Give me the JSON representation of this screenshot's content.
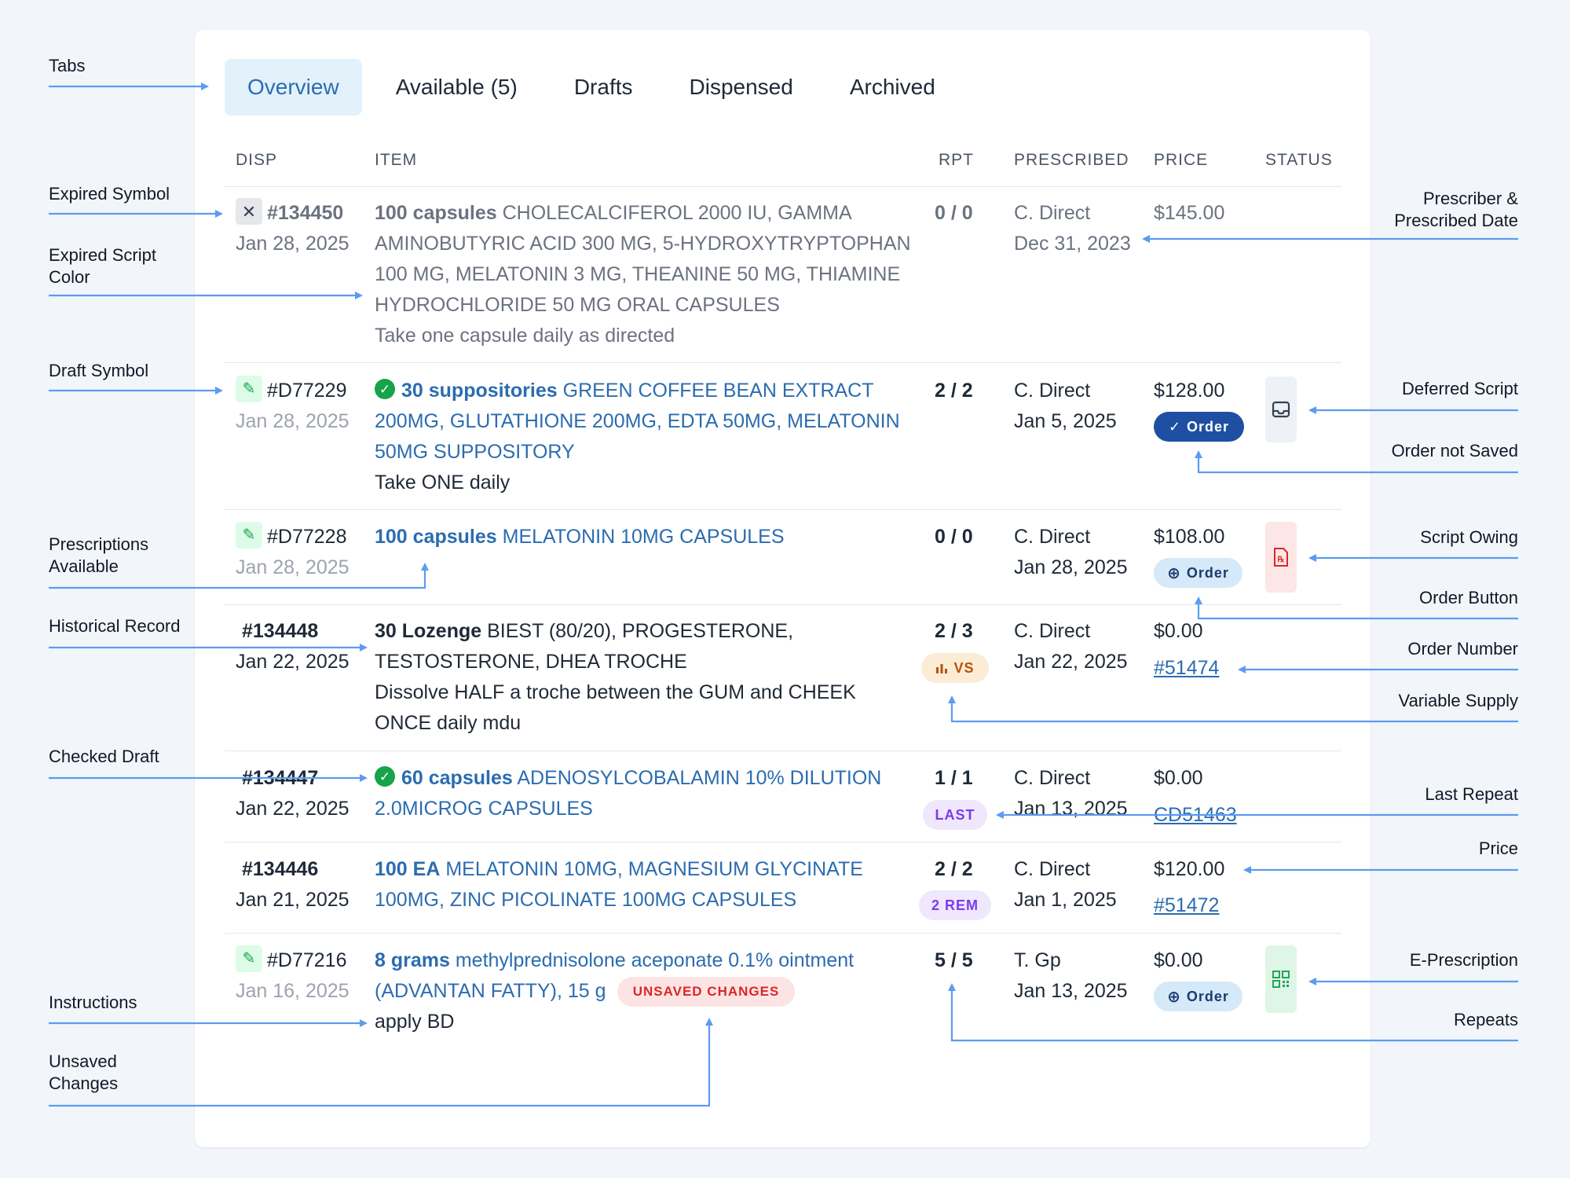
{
  "tabs": [
    {
      "label": "Overview",
      "active": true
    },
    {
      "label": "Available (5)"
    },
    {
      "label": "Drafts"
    },
    {
      "label": "Dispensed"
    },
    {
      "label": "Archived"
    }
  ],
  "columns": {
    "disp": "DISP",
    "item": "ITEM",
    "rpt": "RPT",
    "prescribed": "PRESCRIBED",
    "price": "PRICE",
    "status": "STATUS"
  },
  "rows": [
    {
      "number": "#134450",
      "date": "Jan 28, 2025",
      "qty": "100 capsules",
      "item_lines": [
        "CHOLECALCIFEROL 2000 IU, GAMMA",
        "AMINOBUTYRIC ACID 300 MG, 5-HYDROXYTRYPTOPHAN",
        "100 MG, MELATONIN 3 MG, THEANINE 50 MG, THIAMINE",
        "HYDROCHLORIDE 50 MG ORAL CAPSULES"
      ],
      "instructions": "Take one capsule daily as directed",
      "rpt": "0 / 0",
      "prescriber": "C. Direct",
      "prescribed_date": "Dec 31, 2023",
      "price": "$145.00"
    },
    {
      "number": "#D77229",
      "date": "Jan 28, 2025",
      "qty": "30 suppositories",
      "item_lines": [
        "GREEN COFFEE BEAN EXTRACT",
        "200MG, GLUTATHIONE 200MG, EDTA 50MG, MELATONIN",
        "50MG SUPPOSITORY"
      ],
      "instructions": "Take ONE daily",
      "rpt": "2 / 2",
      "prescriber": "C. Direct",
      "prescribed_date": "Jan 5, 2025",
      "price": "$128.00",
      "order_button": "Order"
    },
    {
      "number": "#D77228",
      "date": "Jan 28, 2025",
      "qty": "100 capsules",
      "item_lines": [
        "MELATONIN 10MG CAPSULES"
      ],
      "rpt": "0 / 0",
      "prescriber": "C. Direct",
      "prescribed_date": "Jan 28, 2025",
      "price": "$108.00",
      "order_button": "Order"
    },
    {
      "number": "#134448",
      "date": "Jan 22, 2025",
      "qty": "30 Lozenge",
      "item_lines": [
        "BIEST (80/20), PROGESTERONE,",
        "TESTOSTERONE, DHEA TROCHE"
      ],
      "instructions_lines": [
        "Dissolve HALF a troche between the GUM and CHEEK",
        "ONCE daily mdu"
      ],
      "rpt": "2 / 3",
      "rpt_badge": "VS",
      "prescriber": "C. Direct",
      "prescribed_date": "Jan 22, 2025",
      "price": "$0.00",
      "order_number": "#51474"
    },
    {
      "number": "#134447",
      "date": "Jan 22, 2025",
      "qty": "60 capsules",
      "item_lines": [
        "ADENOSYLCOBALAMIN 10% DILUTION",
        "2.0MICROG CAPSULES"
      ],
      "rpt": "1 / 1",
      "rpt_badge": "LAST",
      "prescriber": "C. Direct",
      "prescribed_date": "Jan 13, 2025",
      "price": "$0.00",
      "order_number": "CD51463"
    },
    {
      "number": "#134446",
      "date": "Jan 21, 2025",
      "qty": "100 EA",
      "item_lines": [
        "MELATONIN 10MG, MAGNESIUM GLYCINATE",
        "100MG, ZINC PICOLINATE 100MG CAPSULES"
      ],
      "rpt": "2 / 2",
      "rpt_badge": "2 REM",
      "prescriber": "C. Direct",
      "prescribed_date": "Jan 1, 2025",
      "price": "$120.00",
      "order_number": "#51472"
    },
    {
      "number": "#D77216",
      "date": "Jan 16, 2025",
      "qty": "8 grams",
      "item_lines": [
        "methylprednisolone aceponate 0.1% ointment",
        "(ADVANTAN FATTY), 15 g"
      ],
      "unsaved_badge": "UNSAVED CHANGES",
      "instructions": "apply BD",
      "rpt": "5 / 5",
      "prescriber": "T. Gp",
      "prescribed_date": "Jan 13, 2025",
      "price": "$0.00",
      "order_button": "Order"
    }
  ],
  "annotations": {
    "tabs": "Tabs",
    "expired_symbol": "Expired Symbol",
    "expired_script_color": [
      "Expired Script",
      "Color"
    ],
    "draft_symbol": "Draft Symbol",
    "prescriptions_available": [
      "Prescriptions",
      "Available"
    ],
    "historical_record": "Historical Record",
    "checked_draft": "Checked Draft",
    "instructions": "Instructions",
    "unsaved_changes": [
      "Unsaved",
      "Changes"
    ],
    "prescriber_date": [
      "Prescriber &",
      "Prescribed Date"
    ],
    "deferred_script": "Deferred Script",
    "order_not_saved": "Order not Saved",
    "script_owing": "Script Owing",
    "order_button": "Order Button",
    "order_number": "Order Number",
    "variable_supply": "Variable Supply",
    "last_repeat": "Last Repeat",
    "price": "Price",
    "e_prescription": "E-Prescription",
    "repeats": "Repeats"
  },
  "colors": {
    "accent": "#2b6cb0",
    "arrow": "#5b9cf0",
    "order_dark": "#1e4fa3",
    "green": "#16a34a",
    "red": "#dc2626",
    "purple": "#7c3aed"
  }
}
